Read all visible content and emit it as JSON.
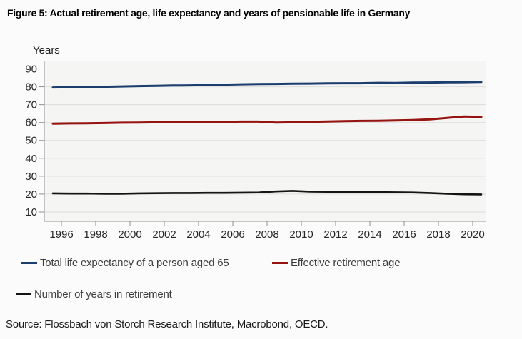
{
  "figure": {
    "title": "Figure 5: Actual retirement age, life expectancy and years of pensionable life in Germany",
    "axis_title": "Years",
    "source": "Source: Flossbach von Storch Research Institute, Macrobond, OECD."
  },
  "colors": {
    "panel_background": "#f5f5f4",
    "gridline": "#dcdcdc",
    "axis": "#8f8f8f",
    "tick_label": "#262626",
    "legend_text": "#3d3d3d",
    "life_expectancy_line": "#1b3e6f",
    "retirement_age_line": "#961410",
    "years_in_retirement_line": "#141414"
  },
  "legend": {
    "items": [
      {
        "label": "Total life expectancy of a person aged 65"
      },
      {
        "label": "Effective retirement age"
      },
      {
        "label": "Number of years in retirement"
      }
    ]
  },
  "chart_data": {
    "type": "line",
    "title": "Figure 5: Actual retirement age, life expectancy and years of pensionable life in Germany",
    "xlabel": "",
    "ylabel": "Years",
    "ylim": [
      4.8,
      94.2
    ],
    "yticks": [
      10,
      20,
      30,
      40,
      50,
      60,
      70,
      80,
      90
    ],
    "xticks": [
      1996,
      1998,
      2000,
      2002,
      2004,
      2006,
      2008,
      2010,
      2012,
      2014,
      2016,
      2018,
      2020
    ],
    "grid": "horizontal",
    "legend_position": "bottom",
    "x": [
      1995,
      1996,
      1997,
      1998,
      1999,
      2000,
      2001,
      2002,
      2003,
      2004,
      2005,
      2006,
      2007,
      2008,
      2009,
      2010,
      2011,
      2012,
      2013,
      2014,
      2015,
      2016,
      2017,
      2018,
      2019,
      2020
    ],
    "series": [
      {
        "name": "Total life expectancy of a person aged 65",
        "color": "#1b3e6f",
        "values": [
          79.6,
          79.7,
          79.9,
          80.0,
          80.2,
          80.4,
          80.5,
          80.7,
          80.8,
          81.0,
          81.2,
          81.4,
          81.5,
          81.6,
          81.7,
          81.8,
          81.9,
          82.0,
          82.0,
          82.2,
          82.1,
          82.3,
          82.4,
          82.5,
          82.6,
          82.7
        ]
      },
      {
        "name": "Effective retirement age",
        "color": "#961410",
        "values": [
          59.4,
          59.5,
          59.6,
          59.7,
          59.9,
          60.0,
          60.1,
          60.1,
          60.2,
          60.3,
          60.4,
          60.5,
          60.5,
          60.0,
          60.1,
          60.4,
          60.6,
          60.8,
          60.9,
          61.0,
          61.2,
          61.4,
          61.8,
          62.6,
          63.4,
          63.2
        ]
      },
      {
        "name": "Number of years in retirement",
        "color": "#141414",
        "values": [
          20.4,
          20.3,
          20.3,
          20.2,
          20.2,
          20.4,
          20.5,
          20.6,
          20.6,
          20.7,
          20.7,
          20.8,
          20.9,
          21.5,
          21.8,
          21.4,
          21.3,
          21.2,
          21.1,
          21.1,
          21.0,
          20.9,
          20.6,
          20.2,
          19.9,
          19.8
        ]
      }
    ]
  }
}
